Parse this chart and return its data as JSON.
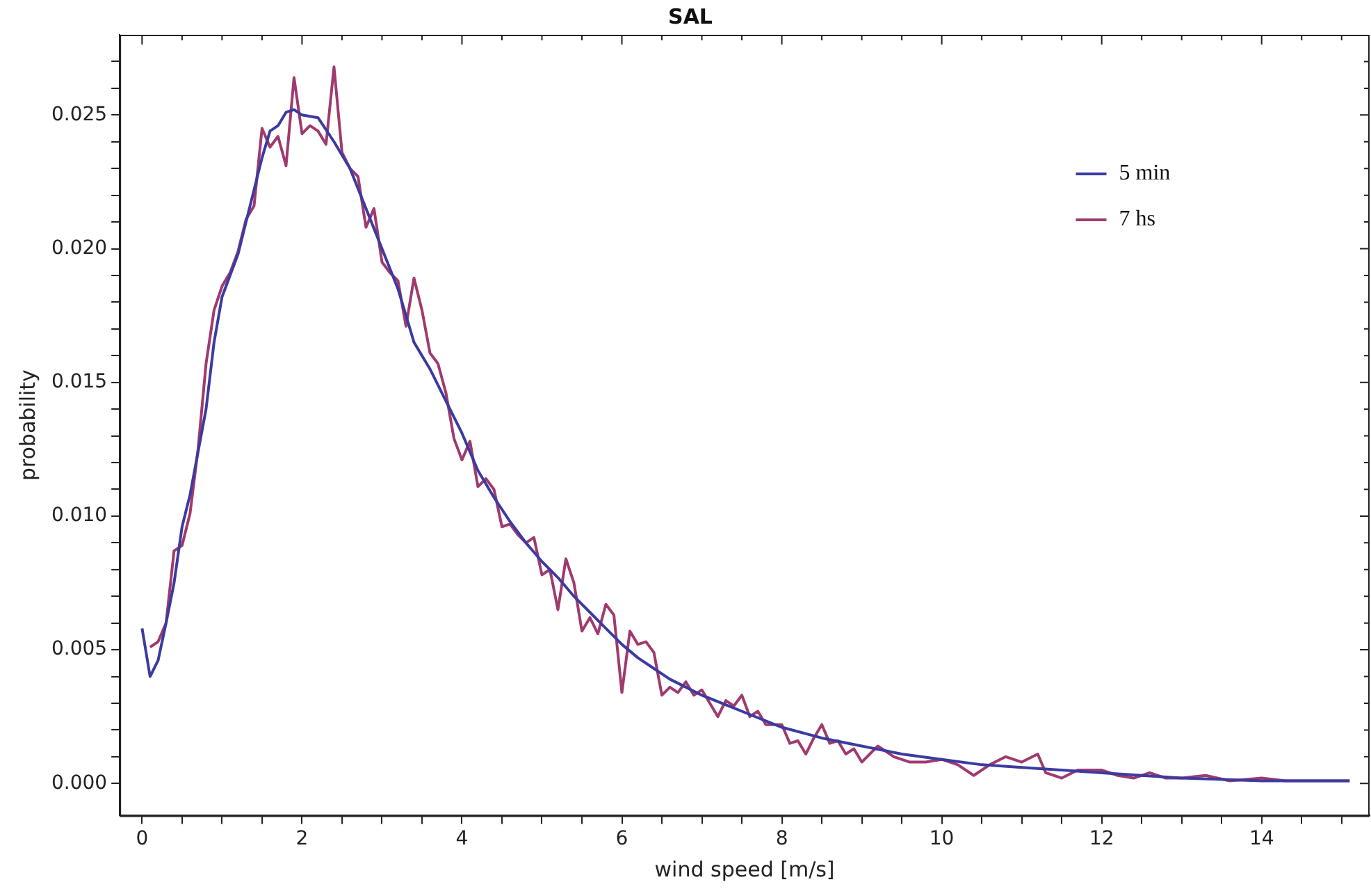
{
  "chart_data": {
    "type": "line",
    "title": "SAL",
    "xlabel": "wind speed [m/s]",
    "ylabel": "probability",
    "xlim": [
      -0.28,
      15.35
    ],
    "ylim": [
      -0.0012,
      0.028
    ],
    "xticks": [
      0,
      {
        "value": 0.5,
        "label": null
      },
      {
        "value": 1,
        "label": null
      },
      {
        "value": 1.5,
        "label": null
      },
      2,
      {
        "value": 2.5,
        "label": null
      },
      {
        "value": 3,
        "label": null
      },
      {
        "value": 3.5,
        "label": null
      },
      4,
      {
        "value": 4.5,
        "label": null
      },
      {
        "value": 5,
        "label": null
      },
      {
        "value": 5.5,
        "label": null
      },
      6,
      {
        "value": 6.5,
        "label": null
      },
      {
        "value": 7,
        "label": null
      },
      {
        "value": 7.5,
        "label": null
      },
      8,
      {
        "value": 8.5,
        "label": null
      },
      {
        "value": 9,
        "label": null
      },
      {
        "value": 9.5,
        "label": null
      },
      10,
      {
        "value": 10.5,
        "label": null
      },
      {
        "value": 11,
        "label": null
      },
      {
        "value": 11.5,
        "label": null
      },
      12,
      {
        "value": 12.5,
        "label": null
      },
      {
        "value": 13,
        "label": null
      },
      {
        "value": 13.5,
        "label": null
      },
      14,
      {
        "value": 14.5,
        "label": null
      },
      {
        "value": 15,
        "label": null
      }
    ],
    "yticks": [
      {
        "value": 0,
        "label": "0.000"
      },
      {
        "value": 0.001,
        "label": null
      },
      {
        "value": 0.002,
        "label": null
      },
      {
        "value": 0.003,
        "label": null
      },
      {
        "value": 0.004,
        "label": null
      },
      {
        "value": 0.005,
        "label": "0.005"
      },
      {
        "value": 0.006,
        "label": null
      },
      {
        "value": 0.007,
        "label": null
      },
      {
        "value": 0.008,
        "label": null
      },
      {
        "value": 0.009,
        "label": null
      },
      {
        "value": 0.01,
        "label": "0.010"
      },
      {
        "value": 0.011,
        "label": null
      },
      {
        "value": 0.012,
        "label": null
      },
      {
        "value": 0.013,
        "label": null
      },
      {
        "value": 0.014,
        "label": null
      },
      {
        "value": 0.015,
        "label": "0.015"
      },
      {
        "value": 0.016,
        "label": null
      },
      {
        "value": 0.017,
        "label": null
      },
      {
        "value": 0.018,
        "label": null
      },
      {
        "value": 0.019,
        "label": null
      },
      {
        "value": 0.02,
        "label": "0.020"
      },
      {
        "value": 0.021,
        "label": null
      },
      {
        "value": 0.022,
        "label": null
      },
      {
        "value": 0.023,
        "label": null
      },
      {
        "value": 0.024,
        "label": null
      },
      {
        "value": 0.025,
        "label": "0.025"
      },
      {
        "value": 0.026,
        "label": null
      },
      {
        "value": 0.027,
        "label": null
      }
    ],
    "legend": "top right",
    "marker": "none",
    "line_style": "solid",
    "series": [
      {
        "name": "5 min",
        "color": "#3b3ba0",
        "x": [
          0,
          0.1,
          0.2,
          0.3,
          0.4,
          0.5,
          0.6,
          0.7,
          0.8,
          0.9,
          1.0,
          1.2,
          1.4,
          1.5,
          1.6,
          1.7,
          1.8,
          1.9,
          2.0,
          2.2,
          2.4,
          2.6,
          2.8,
          3.0,
          3.2,
          3.4,
          3.6,
          3.8,
          4.0,
          4.2,
          4.4,
          4.6,
          4.8,
          5.0,
          5.2,
          5.4,
          5.6,
          5.8,
          6.0,
          6.2,
          6.4,
          6.6,
          6.8,
          7.0,
          7.5,
          8.0,
          8.5,
          9.0,
          9.5,
          10.0,
          10.5,
          11.0,
          11.5,
          12.0,
          13.0,
          14.0,
          15.1
        ],
        "values": [
          0.0058,
          0.004,
          0.0046,
          0.006,
          0.0075,
          0.0096,
          0.0108,
          0.0124,
          0.014,
          0.0165,
          0.0182,
          0.0198,
          0.0222,
          0.0234,
          0.0244,
          0.0246,
          0.0251,
          0.0252,
          0.025,
          0.0249,
          0.024,
          0.023,
          0.0215,
          0.02,
          0.0185,
          0.0165,
          0.0155,
          0.0143,
          0.0131,
          0.0117,
          0.0107,
          0.0098,
          0.009,
          0.0083,
          0.0077,
          0.007,
          0.0064,
          0.0058,
          0.0052,
          0.0047,
          0.0043,
          0.0039,
          0.0036,
          0.0033,
          0.0027,
          0.0021,
          0.0017,
          0.0014,
          0.0011,
          0.0009,
          0.0007,
          0.0006,
          0.0005,
          0.0004,
          0.0002,
          0.0001,
          0.0001
        ]
      },
      {
        "name": "7 hs",
        "color": "#a03a6e",
        "x": [
          0.1,
          0.2,
          0.3,
          0.4,
          0.5,
          0.6,
          0.7,
          0.8,
          0.9,
          1.0,
          1.1,
          1.2,
          1.3,
          1.4,
          1.5,
          1.6,
          1.7,
          1.8,
          1.9,
          2.0,
          2.1,
          2.2,
          2.3,
          2.4,
          2.5,
          2.6,
          2.7,
          2.8,
          2.9,
          3.0,
          3.1,
          3.2,
          3.3,
          3.4,
          3.5,
          3.6,
          3.7,
          3.8,
          3.9,
          4.0,
          4.1,
          4.2,
          4.3,
          4.4,
          4.5,
          4.6,
          4.7,
          4.8,
          4.9,
          5.0,
          5.1,
          5.2,
          5.3,
          5.4,
          5.5,
          5.6,
          5.7,
          5.8,
          5.9,
          6.0,
          6.1,
          6.2,
          6.3,
          6.4,
          6.5,
          6.6,
          6.7,
          6.8,
          6.9,
          7.0,
          7.2,
          7.3,
          7.4,
          7.5,
          7.6,
          7.7,
          7.8,
          8.0,
          8.1,
          8.2,
          8.3,
          8.4,
          8.5,
          8.6,
          8.7,
          8.8,
          8.9,
          9.0,
          9.2,
          9.4,
          9.6,
          9.8,
          10.0,
          10.2,
          10.4,
          10.6,
          10.8,
          11.0,
          11.2,
          11.3,
          11.5,
          11.7,
          12.0,
          12.2,
          12.4,
          12.6,
          12.8,
          13.0,
          13.3,
          13.6,
          14.0,
          14.3,
          15.1
        ],
        "values": [
          0.0051,
          0.0053,
          0.006,
          0.0087,
          0.0089,
          0.0101,
          0.0125,
          0.0157,
          0.0177,
          0.0186,
          0.0191,
          0.0199,
          0.0211,
          0.0216,
          0.0245,
          0.0238,
          0.0242,
          0.0231,
          0.0264,
          0.0243,
          0.0246,
          0.0244,
          0.0239,
          0.0268,
          0.0236,
          0.023,
          0.0227,
          0.0208,
          0.0215,
          0.0195,
          0.0191,
          0.0188,
          0.0171,
          0.0189,
          0.0177,
          0.0161,
          0.0157,
          0.0146,
          0.0129,
          0.0121,
          0.0128,
          0.0111,
          0.0114,
          0.011,
          0.0096,
          0.0097,
          0.0093,
          0.009,
          0.0092,
          0.0078,
          0.008,
          0.0065,
          0.0084,
          0.0075,
          0.0057,
          0.0062,
          0.0056,
          0.0067,
          0.0063,
          0.0034,
          0.0057,
          0.0052,
          0.0053,
          0.0049,
          0.0033,
          0.0036,
          0.0034,
          0.0038,
          0.0033,
          0.0035,
          0.0025,
          0.0031,
          0.0029,
          0.0033,
          0.0025,
          0.0027,
          0.0022,
          0.0022,
          0.0015,
          0.0016,
          0.0011,
          0.0017,
          0.0022,
          0.0015,
          0.0016,
          0.0011,
          0.0013,
          0.0008,
          0.0014,
          0.001,
          0.0008,
          0.0008,
          0.0009,
          0.0007,
          0.0003,
          0.0007,
          0.001,
          0.0008,
          0.0011,
          0.0004,
          0.0002,
          0.0005,
          0.0005,
          0.0003,
          0.0002,
          0.0004,
          0.0002,
          0.0002,
          0.0003,
          0.0001,
          0.0002,
          0.0001,
          0.0001
        ]
      }
    ]
  }
}
